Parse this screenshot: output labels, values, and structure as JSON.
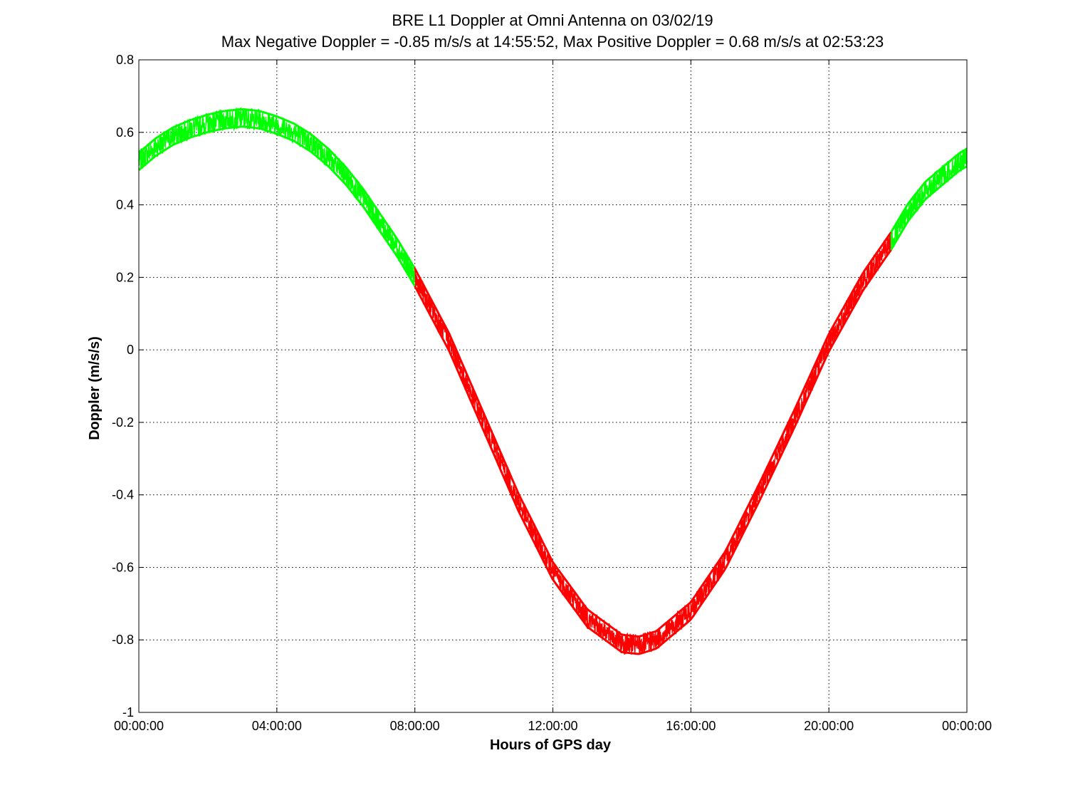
{
  "chart_data": {
    "type": "line",
    "title": "BRE  L1 Doppler at Omni Antenna on 03/02/19",
    "subtitle": "Max Negative Doppler = -0.85 m/s/s  at 14:55:52,   Max Positive Doppler = 0.68 m/s/s  at 02:53:23",
    "xlabel": "Hours of GPS day",
    "ylabel": "Doppler (m/s/s)",
    "xlim": [
      0,
      24
    ],
    "ylim": [
      -1,
      0.8
    ],
    "x_ticks": [
      0,
      4,
      8,
      12,
      16,
      20,
      24
    ],
    "x_tick_labels": [
      "00:00:00",
      "04:00:00",
      "08:00:00",
      "12:00:00",
      "16:00:00",
      "20:00:00",
      "00:00:00"
    ],
    "y_ticks": [
      0.8,
      0.6,
      0.4,
      0.2,
      0,
      -0.2,
      -0.4,
      -0.6,
      -0.8,
      -1
    ],
    "y_tick_labels": [
      "0.8",
      "0.6",
      "0.4",
      "0.2",
      "0",
      "-0.2",
      "-0.4",
      "-0.6",
      "-0.8",
      "-1"
    ],
    "grid": true,
    "grid_style": "dotted",
    "series": [
      {
        "color": "#00ff00",
        "x": [
          0,
          0.5,
          1,
          1.5,
          2,
          2.5,
          3,
          3.5,
          4,
          4.5,
          5,
          5.5,
          6,
          6.5,
          7,
          7.5,
          8
        ],
        "y": [
          0.52,
          0.56,
          0.59,
          0.61,
          0.625,
          0.635,
          0.64,
          0.635,
          0.62,
          0.6,
          0.57,
          0.53,
          0.48,
          0.42,
          0.35,
          0.28,
          0.2
        ]
      },
      {
        "color": "#ff0000",
        "x": [
          8,
          9,
          10,
          11,
          12,
          13,
          14,
          14.5,
          15,
          16,
          17,
          18,
          19,
          20,
          21,
          21.8
        ],
        "y": [
          0.2,
          0.02,
          -0.2,
          -0.42,
          -0.61,
          -0.74,
          -0.81,
          -0.815,
          -0.8,
          -0.72,
          -0.58,
          -0.39,
          -0.19,
          0.02,
          0.19,
          0.3
        ]
      },
      {
        "color": "#00ff00",
        "x": [
          21.8,
          22.3,
          22.8,
          23.3,
          23.8,
          24
        ],
        "y": [
          0.3,
          0.38,
          0.44,
          0.48,
          0.52,
          0.53
        ]
      }
    ],
    "band_half_width": 0.03
  }
}
